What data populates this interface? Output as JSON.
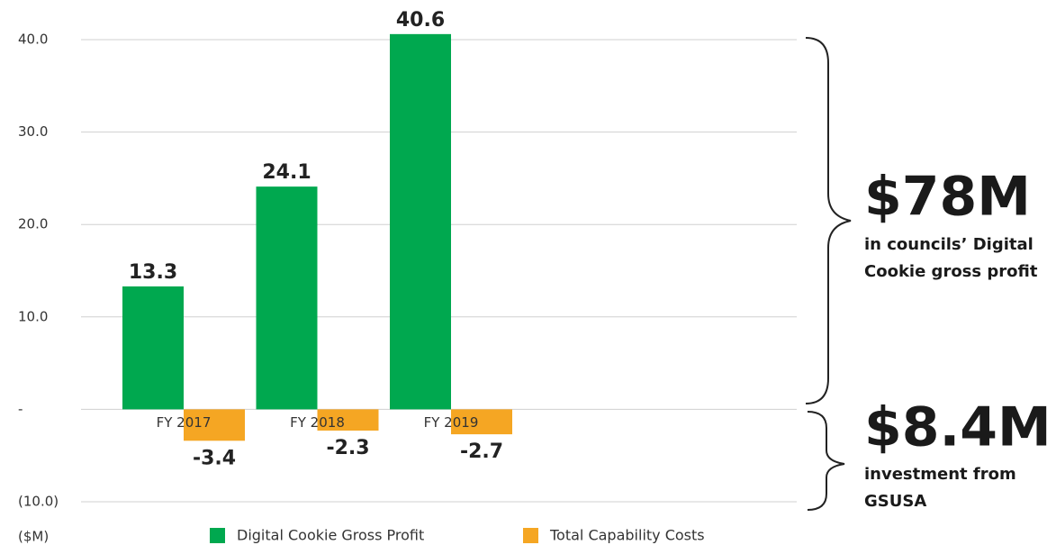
{
  "chart_data": {
    "type": "bar",
    "categories": [
      "FY 2017",
      "FY 2018",
      "FY 2019"
    ],
    "series": [
      {
        "name": "Digital Cookie Gross Profit",
        "color": "#00a84f",
        "values": [
          13.3,
          24.1,
          40.6
        ]
      },
      {
        "name": "Total Capability Costs",
        "color": "#f5a623",
        "values": [
          -3.4,
          -2.3,
          -2.7
        ]
      }
    ],
    "ylim": [
      -10,
      40
    ],
    "yticks": [
      {
        "value": -10,
        "label": "(10.0)"
      },
      {
        "value": 0,
        "label": "-"
      },
      {
        "value": 10,
        "label": "10.0"
      },
      {
        "value": 20,
        "label": "20.0"
      },
      {
        "value": 30,
        "label": "30.0"
      },
      {
        "value": 40,
        "label": "40.0"
      }
    ],
    "y_unit_label": "($M)",
    "grid": true,
    "legend": "bottom",
    "annotations": [
      {
        "title": "$78M",
        "lines": [
          "in councils’ Digital",
          "Cookie gross profit"
        ]
      },
      {
        "title": "$8.4M",
        "lines": [
          "investment from",
          "GSUSA"
        ]
      }
    ]
  }
}
